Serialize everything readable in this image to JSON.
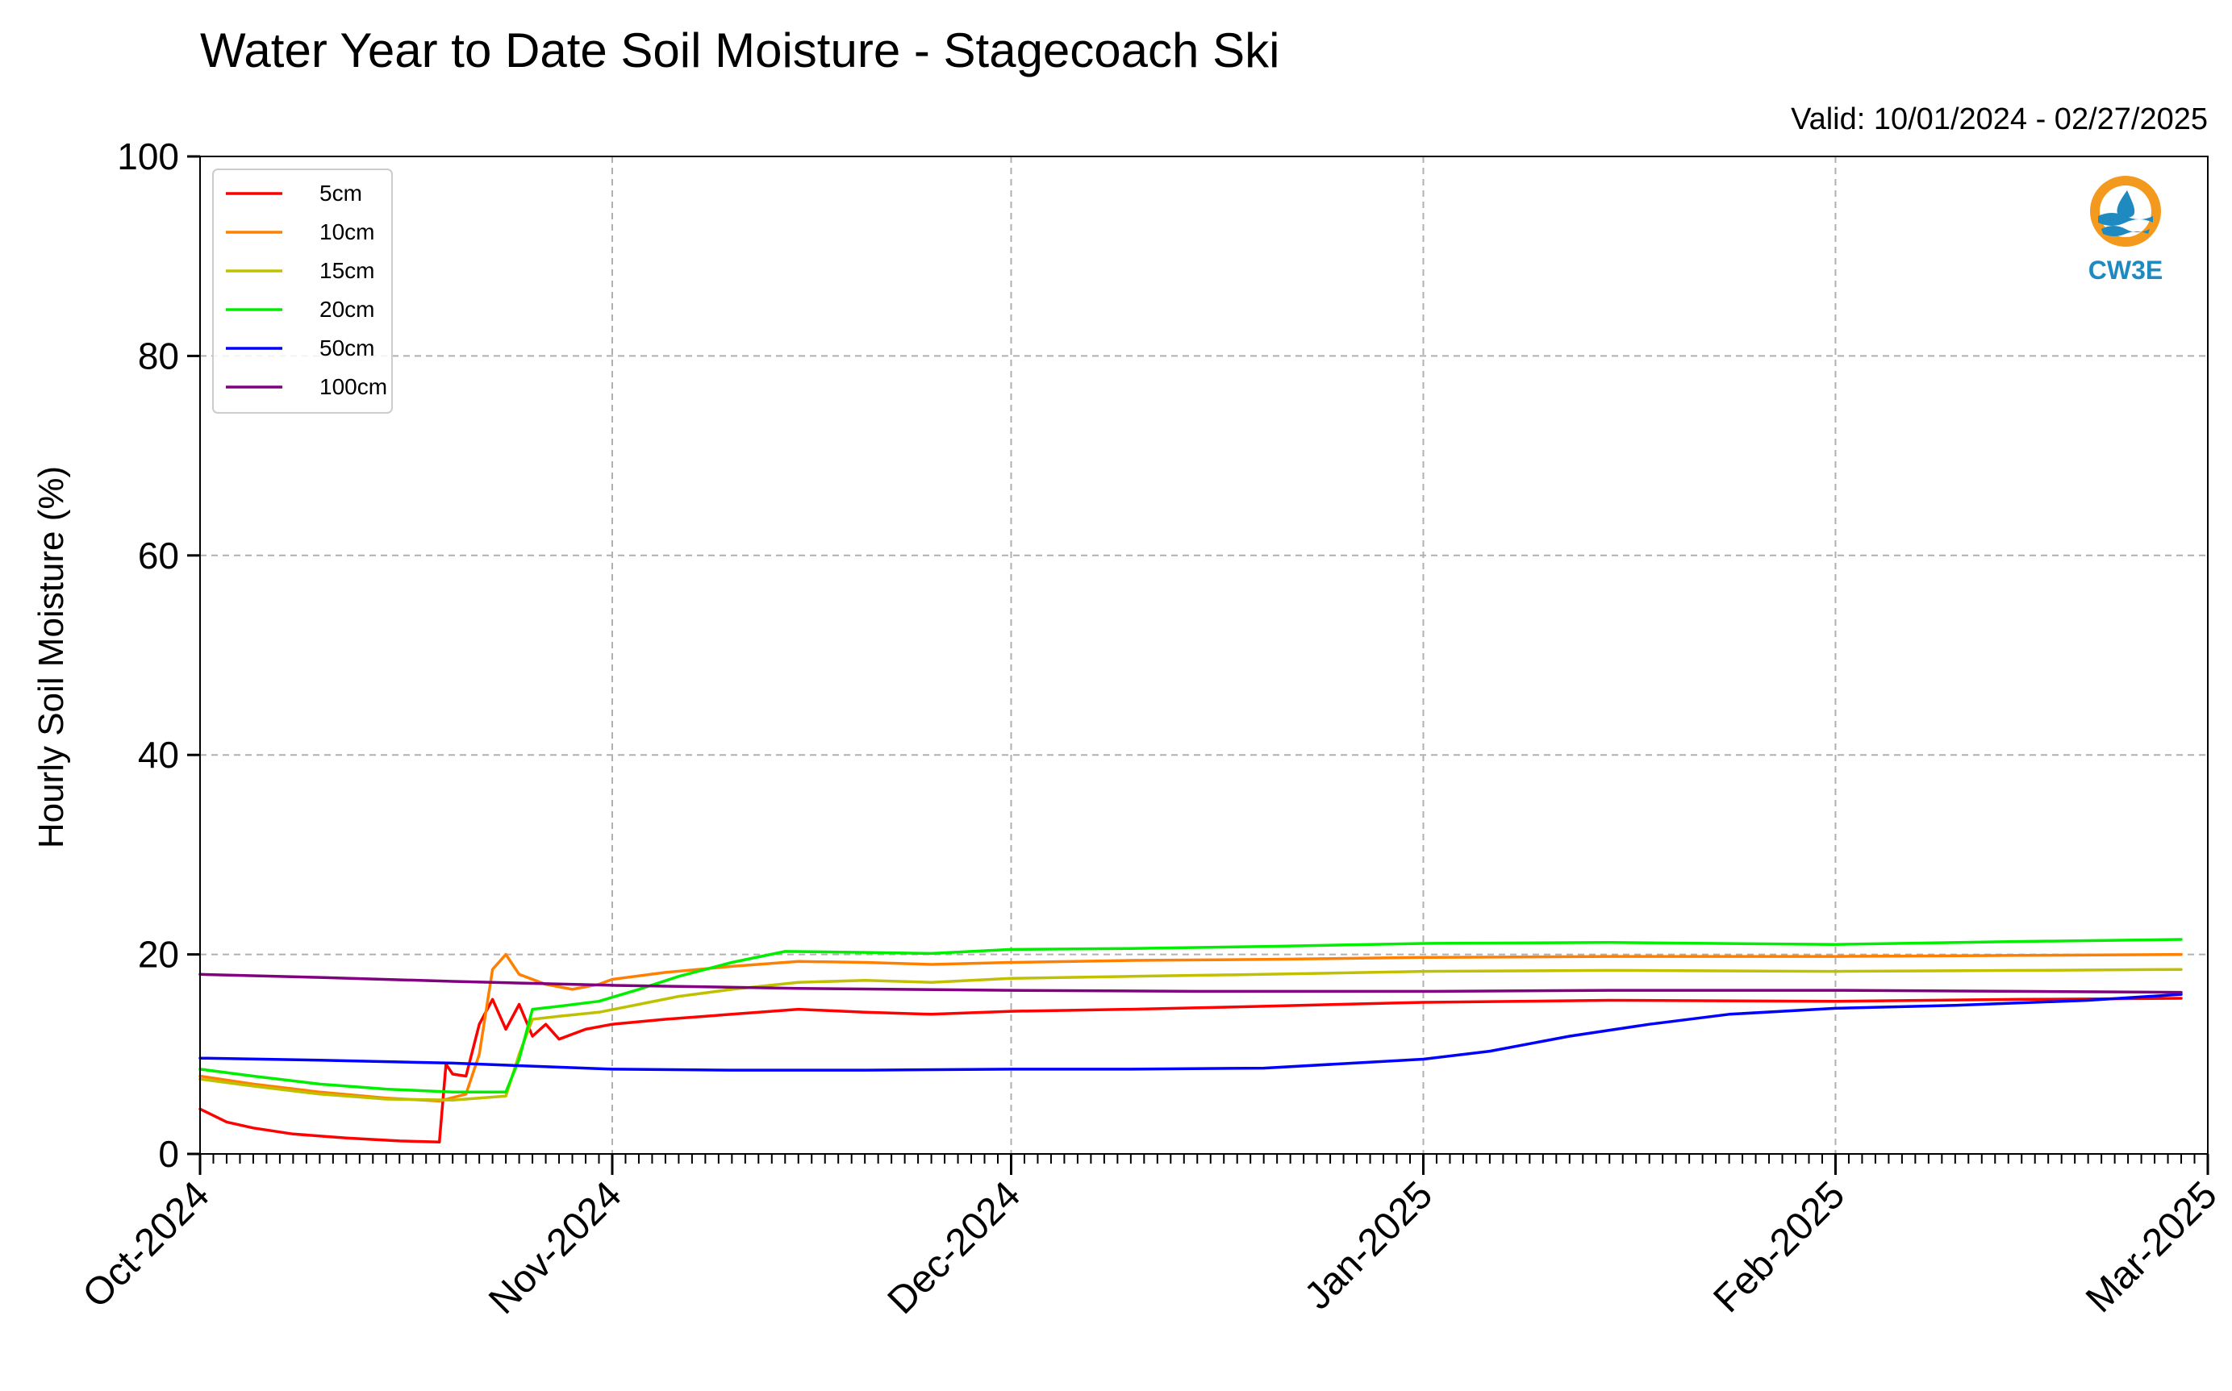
{
  "chart_data": {
    "type": "line",
    "title": "Water Year to Date Soil Moisture - Stagecoach Ski",
    "subtitle": "Valid: 10/01/2024 - 02/27/2025",
    "ylabel": "Hourly Soil Moisture (%)",
    "xlabel": "",
    "ylim": [
      0,
      100
    ],
    "xlim": [
      "2024-10-01",
      "2025-03-01"
    ],
    "yticks": [
      0,
      20,
      40,
      60,
      80,
      100
    ],
    "xticks": [
      {
        "date": "2024-10-01",
        "label": "Oct-2024"
      },
      {
        "date": "2024-11-01",
        "label": "Nov-2024"
      },
      {
        "date": "2024-12-01",
        "label": "Dec-2024"
      },
      {
        "date": "2025-01-01",
        "label": "Jan-2025"
      },
      {
        "date": "2025-02-01",
        "label": "Feb-2025"
      },
      {
        "date": "2025-03-01",
        "label": "Mar-2025"
      }
    ],
    "grid": true,
    "legend_position": "top-left",
    "series": [
      {
        "name": "5cm",
        "color": "#ff0000",
        "points": [
          [
            "2024-10-01",
            4.5
          ],
          [
            "2024-10-03",
            3.2
          ],
          [
            "2024-10-05",
            2.6
          ],
          [
            "2024-10-08",
            2.0
          ],
          [
            "2024-10-12",
            1.6
          ],
          [
            "2024-10-16",
            1.3
          ],
          [
            "2024-10-19",
            1.2
          ],
          [
            "2024-10-19T12",
            9.0
          ],
          [
            "2024-10-20",
            8.0
          ],
          [
            "2024-10-21",
            7.8
          ],
          [
            "2024-10-22",
            13.0
          ],
          [
            "2024-10-23",
            15.5
          ],
          [
            "2024-10-24",
            12.5
          ],
          [
            "2024-10-25",
            15.0
          ],
          [
            "2024-10-26",
            11.8
          ],
          [
            "2024-10-27",
            13.0
          ],
          [
            "2024-10-28",
            11.5
          ],
          [
            "2024-10-30",
            12.5
          ],
          [
            "2024-11-01",
            13.0
          ],
          [
            "2024-11-05",
            13.5
          ],
          [
            "2024-11-10",
            14.0
          ],
          [
            "2024-11-15",
            14.5
          ],
          [
            "2024-11-20",
            14.2
          ],
          [
            "2024-11-25",
            14.0
          ],
          [
            "2024-12-01",
            14.3
          ],
          [
            "2024-12-10",
            14.5
          ],
          [
            "2024-12-20",
            14.8
          ],
          [
            "2025-01-01",
            15.2
          ],
          [
            "2025-01-15",
            15.4
          ],
          [
            "2025-02-01",
            15.3
          ],
          [
            "2025-02-15",
            15.5
          ],
          [
            "2025-02-27",
            15.6
          ]
        ]
      },
      {
        "name": "10cm",
        "color": "#ff8000",
        "points": [
          [
            "2024-10-01",
            7.8
          ],
          [
            "2024-10-05",
            7.0
          ],
          [
            "2024-10-10",
            6.2
          ],
          [
            "2024-10-15",
            5.6
          ],
          [
            "2024-10-19",
            5.3
          ],
          [
            "2024-10-21",
            6.0
          ],
          [
            "2024-10-22",
            10.0
          ],
          [
            "2024-10-23",
            18.5
          ],
          [
            "2024-10-24",
            20.0
          ],
          [
            "2024-10-25",
            18.0
          ],
          [
            "2024-10-26",
            17.5
          ],
          [
            "2024-10-27",
            17.0
          ],
          [
            "2024-10-29",
            16.5
          ],
          [
            "2024-10-31",
            17.0
          ],
          [
            "2024-11-01",
            17.5
          ],
          [
            "2024-11-05",
            18.2
          ],
          [
            "2024-11-10",
            18.8
          ],
          [
            "2024-11-15",
            19.3
          ],
          [
            "2024-11-20",
            19.2
          ],
          [
            "2024-11-25",
            19.0
          ],
          [
            "2024-12-01",
            19.2
          ],
          [
            "2024-12-10",
            19.4
          ],
          [
            "2024-12-20",
            19.5
          ],
          [
            "2025-01-01",
            19.7
          ],
          [
            "2025-01-15",
            19.8
          ],
          [
            "2025-02-01",
            19.8
          ],
          [
            "2025-02-15",
            19.9
          ],
          [
            "2025-02-27",
            20.0
          ]
        ]
      },
      {
        "name": "15cm",
        "color": "#c0c000",
        "points": [
          [
            "2024-10-01",
            7.5
          ],
          [
            "2024-10-05",
            6.8
          ],
          [
            "2024-10-10",
            6.0
          ],
          [
            "2024-10-15",
            5.5
          ],
          [
            "2024-10-20",
            5.4
          ],
          [
            "2024-10-24",
            5.8
          ],
          [
            "2024-10-25",
            10.0
          ],
          [
            "2024-10-26",
            13.5
          ],
          [
            "2024-10-28",
            13.8
          ],
          [
            "2024-10-31",
            14.2
          ],
          [
            "2024-11-03",
            15.0
          ],
          [
            "2024-11-06",
            15.8
          ],
          [
            "2024-11-10",
            16.5
          ],
          [
            "2024-11-15",
            17.2
          ],
          [
            "2024-11-20",
            17.4
          ],
          [
            "2024-11-25",
            17.2
          ],
          [
            "2024-12-01",
            17.6
          ],
          [
            "2024-12-10",
            17.8
          ],
          [
            "2024-12-20",
            18.0
          ],
          [
            "2025-01-01",
            18.3
          ],
          [
            "2025-01-15",
            18.4
          ],
          [
            "2025-02-01",
            18.3
          ],
          [
            "2025-02-15",
            18.4
          ],
          [
            "2025-02-27",
            18.5
          ]
        ]
      },
      {
        "name": "20cm",
        "color": "#00ee00",
        "points": [
          [
            "2024-10-01",
            8.5
          ],
          [
            "2024-10-05",
            7.8
          ],
          [
            "2024-10-10",
            7.0
          ],
          [
            "2024-10-15",
            6.5
          ],
          [
            "2024-10-20",
            6.2
          ],
          [
            "2024-10-24",
            6.2
          ],
          [
            "2024-10-25",
            9.5
          ],
          [
            "2024-10-26",
            14.5
          ],
          [
            "2024-10-28",
            14.8
          ],
          [
            "2024-10-31",
            15.3
          ],
          [
            "2024-11-03",
            16.5
          ],
          [
            "2024-11-06",
            17.8
          ],
          [
            "2024-11-10",
            19.2
          ],
          [
            "2024-11-14",
            20.3
          ],
          [
            "2024-11-20",
            20.2
          ],
          [
            "2024-11-25",
            20.1
          ],
          [
            "2024-12-01",
            20.5
          ],
          [
            "2024-12-10",
            20.6
          ],
          [
            "2024-12-20",
            20.8
          ],
          [
            "2025-01-01",
            21.1
          ],
          [
            "2025-01-15",
            21.2
          ],
          [
            "2025-02-01",
            21.0
          ],
          [
            "2025-02-15",
            21.3
          ],
          [
            "2025-02-27",
            21.5
          ]
        ]
      },
      {
        "name": "50cm",
        "color": "#0000ff",
        "points": [
          [
            "2024-10-01",
            9.6
          ],
          [
            "2024-10-10",
            9.4
          ],
          [
            "2024-10-20",
            9.1
          ],
          [
            "2024-10-24",
            8.9
          ],
          [
            "2024-11-01",
            8.5
          ],
          [
            "2024-11-10",
            8.4
          ],
          [
            "2024-11-20",
            8.4
          ],
          [
            "2024-12-01",
            8.5
          ],
          [
            "2024-12-10",
            8.5
          ],
          [
            "2024-12-20",
            8.6
          ],
          [
            "2025-01-01",
            9.5
          ],
          [
            "2025-01-06",
            10.3
          ],
          [
            "2025-01-12",
            11.8
          ],
          [
            "2025-01-18",
            13.0
          ],
          [
            "2025-01-24",
            14.0
          ],
          [
            "2025-02-01",
            14.6
          ],
          [
            "2025-02-10",
            14.9
          ],
          [
            "2025-02-20",
            15.4
          ],
          [
            "2025-02-27",
            16.0
          ]
        ]
      },
      {
        "name": "100cm",
        "color": "#800080",
        "points": [
          [
            "2024-10-01",
            18.0
          ],
          [
            "2024-10-10",
            17.7
          ],
          [
            "2024-10-20",
            17.3
          ],
          [
            "2024-11-01",
            16.9
          ],
          [
            "2024-11-15",
            16.6
          ],
          [
            "2024-12-01",
            16.4
          ],
          [
            "2024-12-15",
            16.3
          ],
          [
            "2025-01-01",
            16.3
          ],
          [
            "2025-01-15",
            16.4
          ],
          [
            "2025-02-01",
            16.4
          ],
          [
            "2025-02-15",
            16.3
          ],
          [
            "2025-02-27",
            16.2
          ]
        ]
      }
    ]
  },
  "logo": {
    "text": "CW3E",
    "colors": {
      "orange": "#f39a1e",
      "blue": "#1f8ac0"
    }
  }
}
